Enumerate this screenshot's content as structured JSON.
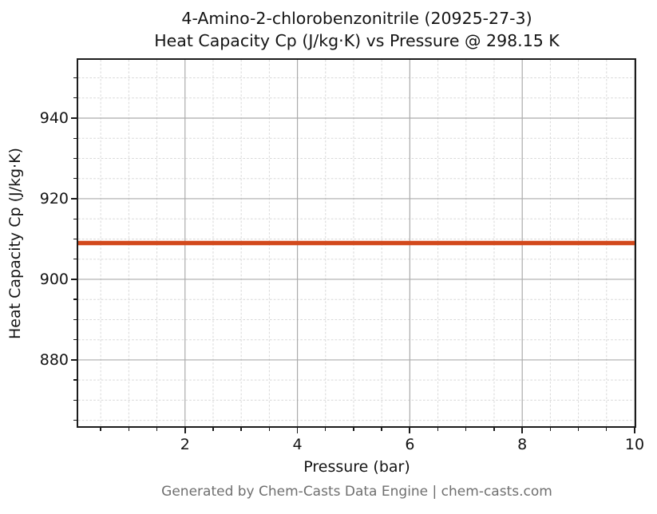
{
  "chart_data": {
    "type": "line",
    "title": "4-Amino-2-chlorobenzonitrile (20925-27-3)",
    "subtitle": "Heat Capacity Cp (J/kg·K) vs Pressure @ 298.15 K",
    "xlabel": "Pressure (bar)",
    "ylabel": "Heat Capacity Cp (J/kg·K)",
    "footer": "Generated by Chem-Casts Data Engine | chem-casts.com",
    "xlim": [
      0.1,
      10
    ],
    "ylim": [
      863.55,
      954.45
    ],
    "x_major_ticks": [
      2,
      4,
      6,
      8,
      10
    ],
    "x_minor_step": 0.5,
    "y_major_ticks": [
      880,
      900,
      920,
      940
    ],
    "y_minor_step": 5,
    "grid": {
      "major_style": "solid",
      "major_color": "#ababab",
      "minor_style": "dashed",
      "minor_color": "#d8d8d8"
    },
    "series": [
      {
        "name": "Heat Capacity Cp",
        "color": "#d2491c",
        "line_width": 5.5,
        "x": [
          0.1,
          10
        ],
        "y": [
          909,
          909
        ]
      }
    ],
    "legend": null,
    "temperature_K": "298.15",
    "cp_value_J_per_kgK": 909
  },
  "colors": {
    "text": "#141414",
    "footer_text": "#6f6f6f",
    "spine": "#1c1c1c"
  }
}
